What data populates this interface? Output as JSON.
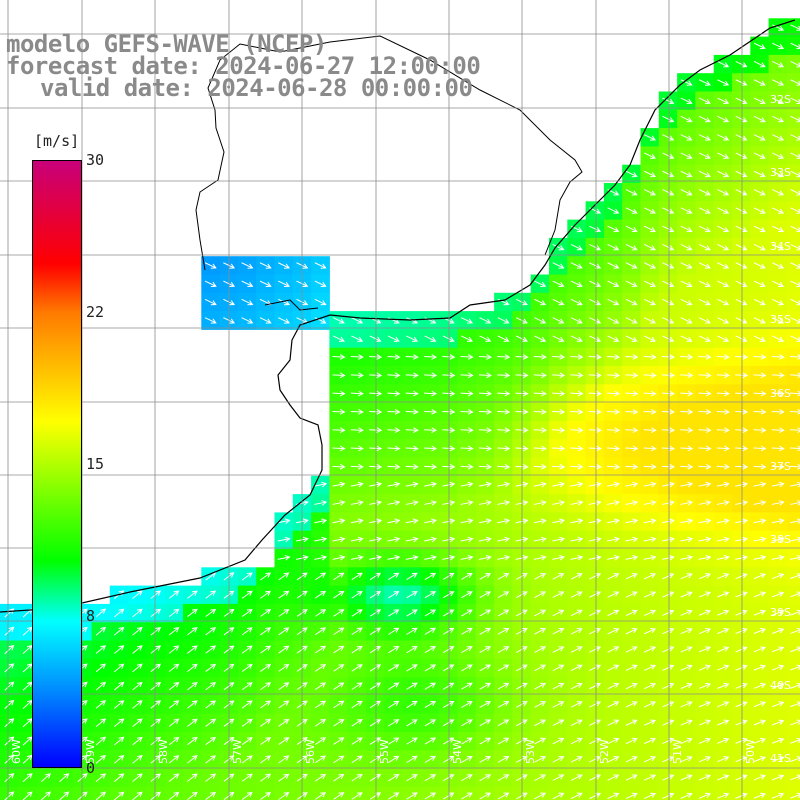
{
  "title": {
    "line1": "modelo GEFS-WAVE (NCEP)",
    "line2": "forecast date: 2024-06-27 12:00:00",
    "line3": "valid date: 2024-06-28 00:00:00"
  },
  "colorbar": {
    "unit": "[m/s]",
    "ticks": [
      "30",
      "22",
      "15",
      "8",
      "0"
    ],
    "colors": [
      "#0000ff",
      "#0099ff",
      "#00ffff",
      "#00ff00",
      "#ffff00",
      "#ff7a00",
      "#ff0000",
      "#c8007a"
    ]
  },
  "lat_labels": [
    "32S",
    "33S",
    "34S",
    "35S",
    "36S",
    "37S",
    "38S",
    "39S",
    "40S",
    "41S"
  ],
  "lon_labels": [
    "60W",
    "59W",
    "58W",
    "57W",
    "56W",
    "55W",
    "54W",
    "53W",
    "52W",
    "51W",
    "50W"
  ],
  "map_colors": {
    "land": "#ffffff",
    "coast": "#000000",
    "grid": "#8c8c8c",
    "arrow": "#ffffff"
  }
}
